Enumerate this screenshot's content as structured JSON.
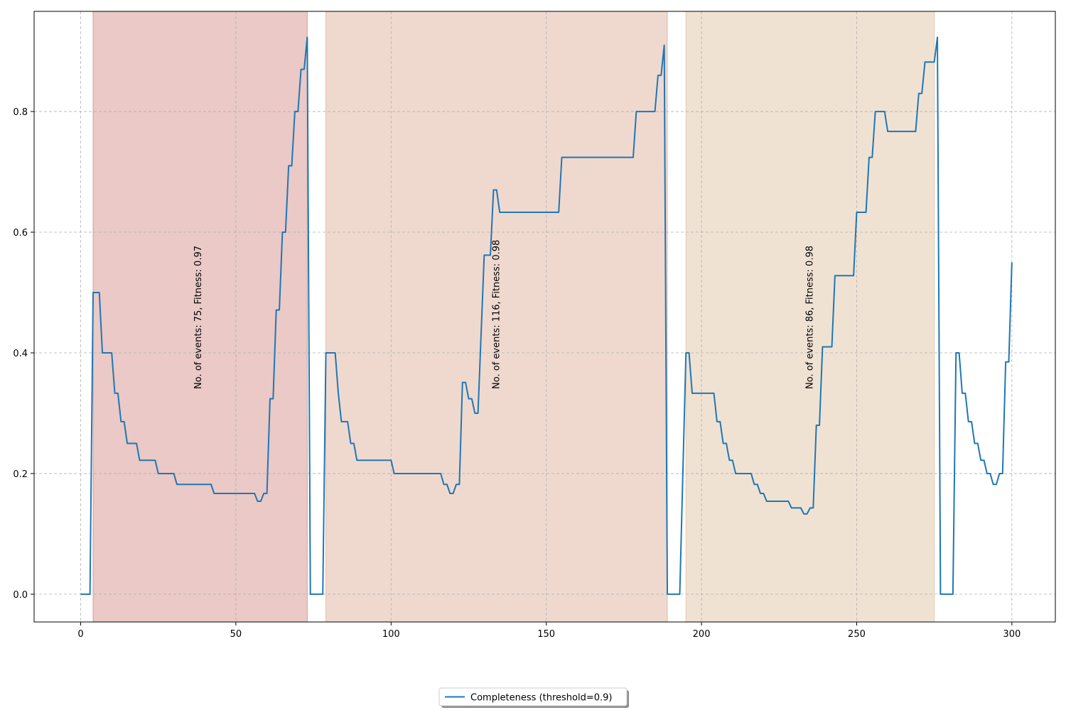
{
  "chart_data": {
    "type": "line",
    "title": "",
    "xlabel": "",
    "ylabel": "",
    "xlim": [
      -15,
      314
    ],
    "ylim": [
      -0.046,
      0.966
    ],
    "x_ticks": [
      0,
      50,
      100,
      150,
      200,
      250,
      300
    ],
    "y_ticks": [
      0.0,
      0.2,
      0.4,
      0.6,
      0.8
    ],
    "x_tick_labels": [
      "0",
      "50",
      "100",
      "150",
      "200",
      "250",
      "300"
    ],
    "y_tick_labels": [
      "0.0",
      "0.2",
      "0.4",
      "0.6",
      "0.8"
    ],
    "grid": true,
    "legend_position": "bottom-center",
    "line_color": "#1f77b4",
    "regions": [
      {
        "x0": 4,
        "x1": 73,
        "color": "#c8706a",
        "label": "No. of events: 75, Fitness: 0.97",
        "label_x": 38,
        "label_y": 0.34
      },
      {
        "x0": 79,
        "x1": 189,
        "color": "#d49a82",
        "label": "No. of events: 116, Fitness: 0.98",
        "label_x": 134,
        "label_y": 0.34
      },
      {
        "x0": 195,
        "x1": 275,
        "color": "#d7b38c",
        "label": "No. of events: 86, Fitness: 0.98",
        "label_x": 235,
        "label_y": 0.34
      }
    ],
    "series": [
      {
        "name": "Completeness (threshold=0.9)",
        "points": [
          [
            0,
            0
          ],
          [
            3,
            0
          ],
          [
            4,
            0.5
          ],
          [
            6,
            0.5
          ],
          [
            7,
            0.4
          ],
          [
            10,
            0.4
          ],
          [
            11,
            0.333
          ],
          [
            12,
            0.333
          ],
          [
            13,
            0.286
          ],
          [
            14,
            0.286
          ],
          [
            15,
            0.25
          ],
          [
            18,
            0.25
          ],
          [
            19,
            0.222
          ],
          [
            24,
            0.222
          ],
          [
            25,
            0.2
          ],
          [
            30,
            0.2
          ],
          [
            31,
            0.182
          ],
          [
            42,
            0.182
          ],
          [
            43,
            0.167
          ],
          [
            56,
            0.167
          ],
          [
            57,
            0.154
          ],
          [
            58,
            0.154
          ],
          [
            59,
            0.167
          ],
          [
            60,
            0.167
          ],
          [
            61,
            0.324
          ],
          [
            62,
            0.324
          ],
          [
            63,
            0.471
          ],
          [
            64,
            0.471
          ],
          [
            65,
            0.6
          ],
          [
            66,
            0.6
          ],
          [
            67,
            0.71
          ],
          [
            68,
            0.71
          ],
          [
            69,
            0.8
          ],
          [
            70,
            0.8
          ],
          [
            71,
            0.87
          ],
          [
            72,
            0.87
          ],
          [
            73,
            0.923
          ],
          [
            74,
            0
          ],
          [
            78,
            0
          ],
          [
            79,
            0.4
          ],
          [
            82,
            0.4
          ],
          [
            83,
            0.333
          ],
          [
            84,
            0.286
          ],
          [
            86,
            0.286
          ],
          [
            87,
            0.25
          ],
          [
            88,
            0.25
          ],
          [
            89,
            0.222
          ],
          [
            100,
            0.222
          ],
          [
            101,
            0.2
          ],
          [
            116,
            0.2
          ],
          [
            117,
            0.182
          ],
          [
            118,
            0.182
          ],
          [
            119,
            0.167
          ],
          [
            120,
            0.167
          ],
          [
            121,
            0.182
          ],
          [
            122,
            0.182
          ],
          [
            123,
            0.351
          ],
          [
            124,
            0.351
          ],
          [
            125,
            0.324
          ],
          [
            126,
            0.324
          ],
          [
            127,
            0.3
          ],
          [
            128,
            0.3
          ],
          [
            130,
            0.562
          ],
          [
            132,
            0.562
          ],
          [
            133,
            0.67
          ],
          [
            134,
            0.67
          ],
          [
            135,
            0.633
          ],
          [
            154,
            0.633
          ],
          [
            155,
            0.724
          ],
          [
            178,
            0.724
          ],
          [
            179,
            0.8
          ],
          [
            185,
            0.8
          ],
          [
            186,
            0.86
          ],
          [
            187,
            0.86
          ],
          [
            188,
            0.91
          ],
          [
            189,
            0
          ],
          [
            193,
            0
          ],
          [
            195,
            0.4
          ],
          [
            196,
            0.4
          ],
          [
            197,
            0.333
          ],
          [
            204,
            0.333
          ],
          [
            205,
            0.286
          ],
          [
            206,
            0.286
          ],
          [
            207,
            0.25
          ],
          [
            208,
            0.25
          ],
          [
            209,
            0.222
          ],
          [
            210,
            0.222
          ],
          [
            211,
            0.2
          ],
          [
            216,
            0.2
          ],
          [
            217,
            0.182
          ],
          [
            218,
            0.182
          ],
          [
            219,
            0.167
          ],
          [
            220,
            0.167
          ],
          [
            221,
            0.154
          ],
          [
            228,
            0.154
          ],
          [
            229,
            0.143
          ],
          [
            232,
            0.143
          ],
          [
            233,
            0.133
          ],
          [
            234,
            0.133
          ],
          [
            235,
            0.143
          ],
          [
            236,
            0.143
          ],
          [
            237,
            0.28
          ],
          [
            238,
            0.28
          ],
          [
            239,
            0.41
          ],
          [
            242,
            0.41
          ],
          [
            243,
            0.528
          ],
          [
            249,
            0.528
          ],
          [
            250,
            0.633
          ],
          [
            253,
            0.633
          ],
          [
            254,
            0.724
          ],
          [
            255,
            0.724
          ],
          [
            256,
            0.8
          ],
          [
            259,
            0.8
          ],
          [
            260,
            0.767
          ],
          [
            269,
            0.767
          ],
          [
            270,
            0.83
          ],
          [
            271,
            0.83
          ],
          [
            272,
            0.882
          ],
          [
            275,
            0.882
          ],
          [
            276,
            0.923
          ],
          [
            277,
            0
          ],
          [
            281,
            0
          ],
          [
            282,
            0.4
          ],
          [
            283,
            0.4
          ],
          [
            284,
            0.333
          ],
          [
            285,
            0.333
          ],
          [
            286,
            0.286
          ],
          [
            287,
            0.286
          ],
          [
            288,
            0.25
          ],
          [
            289,
            0.25
          ],
          [
            290,
            0.222
          ],
          [
            291,
            0.222
          ],
          [
            292,
            0.2
          ],
          [
            293,
            0.2
          ],
          [
            294,
            0.182
          ],
          [
            295,
            0.182
          ],
          [
            296,
            0.2
          ],
          [
            297,
            0.2
          ],
          [
            298,
            0.385
          ],
          [
            299,
            0.385
          ],
          [
            300,
            0.55
          ]
        ]
      }
    ]
  }
}
